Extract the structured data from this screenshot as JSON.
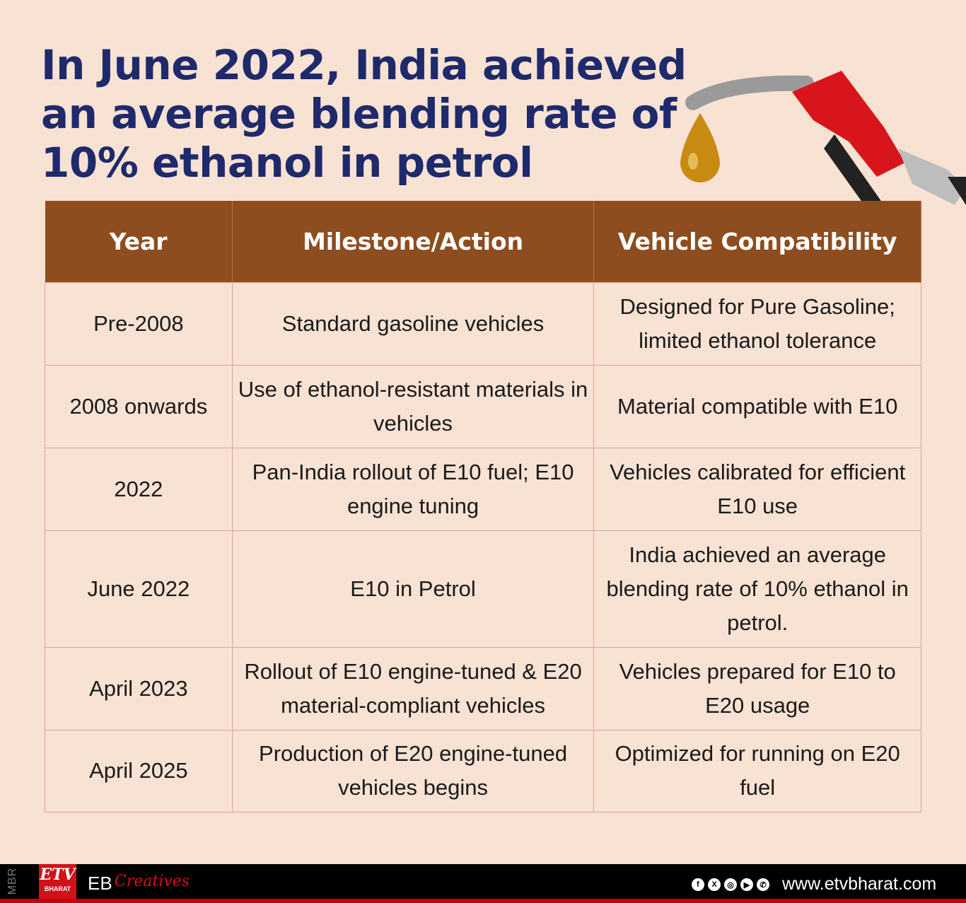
{
  "title": "In June 2022, India achieved an average blending rate of 10% ethanol in petrol",
  "table": {
    "headers": [
      "Year",
      "Milestone/Action",
      "Vehicle Compatibility"
    ],
    "rows": [
      [
        "Pre-2008",
        "Standard gasoline vehicles",
        "Designed for Pure Gasoline; limited ethanol tolerance"
      ],
      [
        "2008 onwards",
        "Use of ethanol-resistant materials in vehicles",
        "Material compatible with E10"
      ],
      [
        "2022",
        "Pan-India rollout of E10 fuel; E10 engine tuning",
        "Vehicles calibrated for efficient E10 use"
      ],
      [
        "June 2022",
        "E10 in Petrol",
        "India achieved an average blending rate of 10% ethanol in petrol."
      ],
      [
        "April 2023",
        "Rollout of E10 engine-tuned & E20 material-compliant vehicles",
        "Vehicles prepared for E10 to E20 usage"
      ],
      [
        "April 2025",
        "Production of E20 engine-tuned vehicles begins",
        "Optimized for running on E20 fuel"
      ]
    ]
  },
  "footer": {
    "mbr": "MBR",
    "logo": "ETV",
    "logo_sub": "BHARAT",
    "eb": "EB",
    "creatives": "Creatives",
    "url": "www.etvbharat.com",
    "social_icons": [
      "facebook-icon",
      "x-icon",
      "instagram-icon",
      "youtube-icon",
      "whatsapp-icon"
    ]
  },
  "colors": {
    "header": "#8e4d1f",
    "title": "#1e2a6b",
    "background": "#f8e2d3",
    "footer": "#000000",
    "brand_red": "#d0121b"
  }
}
